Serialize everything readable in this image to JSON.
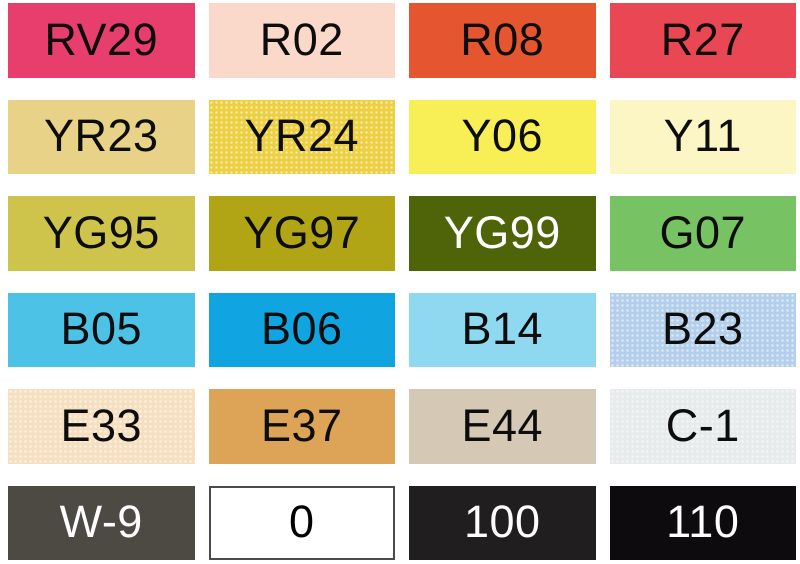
{
  "swatches": [
    {
      "code": "RV29",
      "bg": "#e83e6e",
      "fg": "#0d0d0d"
    },
    {
      "code": "R02",
      "bg": "#fad8ca",
      "fg": "#0d0d0d"
    },
    {
      "code": "R08",
      "bg": "#e5552f",
      "fg": "#0d0d0d"
    },
    {
      "code": "R27",
      "bg": "#e94754",
      "fg": "#0d0d0d"
    },
    {
      "code": "YR23",
      "bg": "#e7d287",
      "fg": "#0d0d0d"
    },
    {
      "code": "YR24",
      "bg": "#ecd041",
      "fg": "#0d0d0d"
    },
    {
      "code": "Y06",
      "bg": "#f8ee55",
      "fg": "#0d0d0d"
    },
    {
      "code": "Y11",
      "bg": "#fbf6c4",
      "fg": "#0d0d0d"
    },
    {
      "code": "YG95",
      "bg": "#cfc44b",
      "fg": "#0d0d0d"
    },
    {
      "code": "YG97",
      "bg": "#b1a516",
      "fg": "#0d0d0d"
    },
    {
      "code": "YG99",
      "bg": "#4f6309",
      "fg": "#ffffff"
    },
    {
      "code": "G07",
      "bg": "#77c263",
      "fg": "#0d0d0d"
    },
    {
      "code": "B05",
      "bg": "#4cc2e6",
      "fg": "#0d0d0d"
    },
    {
      "code": "B06",
      "bg": "#10a5e1",
      "fg": "#0d0d0d"
    },
    {
      "code": "B14",
      "bg": "#8fd9f0",
      "fg": "#0d0d0d"
    },
    {
      "code": "B23",
      "bg": "#b4cfec",
      "fg": "#0d0d0d"
    },
    {
      "code": "E33",
      "bg": "#f6dfc0",
      "fg": "#0d0d0d"
    },
    {
      "code": "E37",
      "bg": "#dda457",
      "fg": "#0d0d0d"
    },
    {
      "code": "E44",
      "bg": "#d5c9b6",
      "fg": "#0d0d0d"
    },
    {
      "code": "C-1",
      "bg": "#e7ebec",
      "fg": "#0d0d0d"
    },
    {
      "code": "W-9",
      "bg": "#4d4943",
      "fg": "#ffffff"
    },
    {
      "code": "0",
      "bg": "#ffffff",
      "fg": "#000000",
      "border": "#4b4b4b"
    },
    {
      "code": "100",
      "bg": "#211e1f",
      "fg": "#ffffff"
    },
    {
      "code": "110",
      "bg": "#0d0b0d",
      "fg": "#ffffff"
    }
  ]
}
